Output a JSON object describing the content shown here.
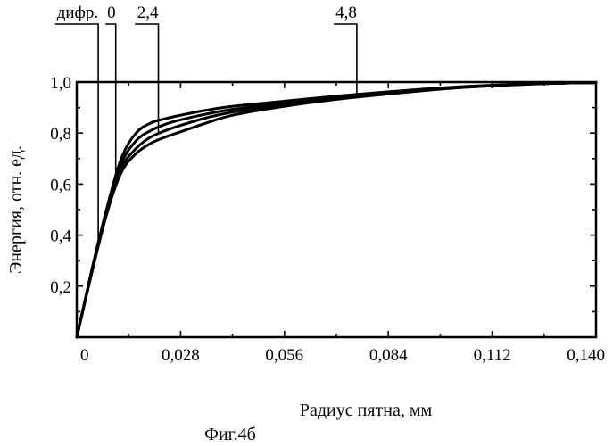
{
  "figure": {
    "caption": "Фиг.4б"
  },
  "chart_data": {
    "type": "line",
    "title": "",
    "xlabel": "Радиус пятна, мм",
    "ylabel": "Энергия, отн. ед.",
    "xlim": [
      0,
      0.14
    ],
    "ylim": [
      0,
      1.0
    ],
    "x_ticks": [
      0,
      0.028,
      0.056,
      0.084,
      0.112,
      0.14
    ],
    "x_tick_labels": [
      "0",
      "0,028",
      "0,056",
      "0,084",
      "0,112",
      "0,140"
    ],
    "y_ticks": [
      0.2,
      0.4,
      0.6,
      0.8,
      1.0
    ],
    "y_tick_labels": [
      "0,2",
      "0,4",
      "0,6",
      "0,8",
      "1,0"
    ],
    "grid": false,
    "legend": "none",
    "series": [
      {
        "name": "дифр.",
        "label_x": 0.0058,
        "x": [
          0,
          0.004,
          0.008,
          0.012,
          0.016,
          0.02,
          0.024,
          0.028,
          0.035,
          0.042,
          0.056,
          0.07,
          0.084,
          0.098,
          0.112,
          0.126,
          0.14
        ],
        "values": [
          0,
          0.26,
          0.5,
          0.7,
          0.8,
          0.84,
          0.857,
          0.87,
          0.89,
          0.905,
          0.925,
          0.945,
          0.962,
          0.977,
          0.988,
          0.995,
          0.998
        ]
      },
      {
        "name": "0",
        "label_x": 0.0105,
        "x": [
          0,
          0.004,
          0.008,
          0.012,
          0.016,
          0.02,
          0.024,
          0.028,
          0.035,
          0.042,
          0.056,
          0.07,
          0.084,
          0.098,
          0.112,
          0.126,
          0.14
        ],
        "values": [
          0,
          0.25,
          0.49,
          0.68,
          0.77,
          0.81,
          0.835,
          0.852,
          0.875,
          0.893,
          0.918,
          0.94,
          0.958,
          0.975,
          0.987,
          0.995,
          0.998
        ]
      },
      {
        "name": "2,4",
        "label_x": 0.022,
        "x": [
          0,
          0.004,
          0.008,
          0.012,
          0.016,
          0.02,
          0.024,
          0.028,
          0.035,
          0.042,
          0.056,
          0.07,
          0.084,
          0.098,
          0.112,
          0.126,
          0.14
        ],
        "values": [
          0,
          0.25,
          0.48,
          0.66,
          0.74,
          0.785,
          0.81,
          0.83,
          0.86,
          0.882,
          0.912,
          0.935,
          0.955,
          0.973,
          0.986,
          0.994,
          0.998
        ]
      },
      {
        "name": "4,8",
        "label_x": 0.0755,
        "x": [
          0,
          0.004,
          0.008,
          0.012,
          0.016,
          0.02,
          0.024,
          0.028,
          0.035,
          0.042,
          0.056,
          0.07,
          0.084,
          0.098,
          0.112,
          0.126,
          0.14
        ],
        "values": [
          0,
          0.25,
          0.48,
          0.645,
          0.72,
          0.76,
          0.785,
          0.805,
          0.84,
          0.87,
          0.905,
          0.932,
          0.953,
          0.972,
          0.985,
          0.994,
          0.998
        ]
      }
    ]
  }
}
